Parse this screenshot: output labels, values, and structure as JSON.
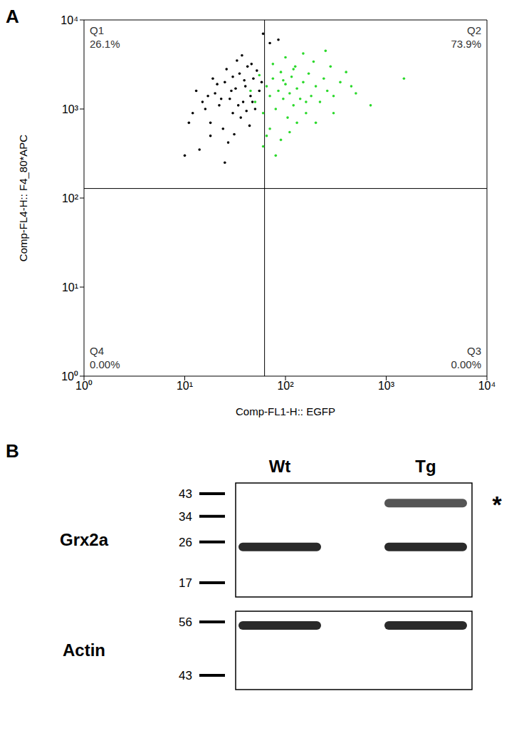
{
  "chart_data": {
    "type": "scatter",
    "panel": "A",
    "x_label": "Comp-FL1-H:: EGFP",
    "y_label": "Comp-FL4-H:: F4_80*APC",
    "log": true,
    "xlim": [
      1,
      10000
    ],
    "ylim": [
      1,
      10000
    ],
    "xticks": [
      {
        "value": 1,
        "label": "10⁰"
      },
      {
        "value": 10,
        "label": "10¹"
      },
      {
        "value": 100,
        "label": "10²"
      },
      {
        "value": 1000,
        "label": "10³"
      },
      {
        "value": 10000,
        "label": "10⁴"
      }
    ],
    "yticks": [
      {
        "value": 1,
        "label": "10⁰"
      },
      {
        "value": 10,
        "label": "10¹"
      },
      {
        "value": 100,
        "label": "10²"
      },
      {
        "value": 1000,
        "label": "10³"
      },
      {
        "value": 10000,
        "label": "10⁴"
      }
    ],
    "gates": {
      "x": 62,
      "y": 128
    },
    "quadrants": [
      {
        "name": "Q1",
        "value": 26.1,
        "label": "26.1%"
      },
      {
        "name": "Q2",
        "value": 73.9,
        "label": "73.9%"
      },
      {
        "name": "Q3",
        "value": 0,
        "label": "0.00%"
      },
      {
        "name": "Q4",
        "value": 0,
        "label": "0.00%"
      }
    ],
    "series": [
      {
        "color": "#000000",
        "x": [
          12,
          15,
          18,
          20,
          22,
          25,
          28,
          30,
          32,
          35,
          38,
          40,
          42,
          45,
          48,
          50,
          52,
          55,
          18,
          24,
          27,
          14,
          10,
          33,
          26,
          21,
          16,
          36,
          44,
          30,
          23,
          29,
          34,
          39,
          46,
          19,
          13,
          11,
          58,
          41,
          31,
          37,
          25,
          17,
          47,
          60,
          70,
          85
        ],
        "y": [
          900,
          1200,
          700,
          1500,
          1100,
          2000,
          1300,
          900,
          1700,
          2500,
          1200,
          1800,
          3000,
          1400,
          2200,
          1000,
          2700,
          1600,
          500,
          600,
          420,
          350,
          300,
          3500,
          2800,
          1900,
          1000,
          800,
          650,
          2300,
          1300,
          1600,
          1100,
          2100,
          3200,
          2200,
          1600,
          700,
          2000,
          950,
          520,
          4000,
          250,
          1400,
          1200,
          7000,
          5500,
          6000
        ]
      },
      {
        "color": "#2bd92b",
        "x": [
          50,
          60,
          65,
          70,
          75,
          80,
          85,
          90,
          95,
          100,
          105,
          110,
          115,
          120,
          125,
          130,
          140,
          150,
          160,
          170,
          180,
          190,
          200,
          220,
          240,
          260,
          280,
          300,
          350,
          400,
          450,
          70,
          90,
          60,
          110,
          130,
          55,
          75,
          100,
          150,
          250,
          300,
          500,
          80,
          65,
          120,
          200,
          160,
          45,
          95,
          700,
          1500
        ],
        "y": [
          1200,
          900,
          1800,
          1400,
          2200,
          1000,
          1600,
          2600,
          1300,
          1900,
          800,
          1500,
          2300,
          1100,
          3000,
          1700,
          1300,
          2000,
          900,
          2500,
          1400,
          3400,
          1800,
          1200,
          2200,
          1600,
          3000,
          1400,
          2000,
          2600,
          1800,
          600,
          450,
          380,
          550,
          700,
          2400,
          3200,
          3800,
          4200,
          4500,
          900,
          1500,
          300,
          500,
          2800,
          700,
          1200,
          1600,
          2100,
          1100,
          2200
        ]
      }
    ]
  },
  "blot": {
    "panel": "B",
    "lanes": [
      "Wt",
      "Tg"
    ],
    "panels": [
      {
        "label": "Grx2a",
        "markers": [
          43,
          34,
          26,
          17
        ],
        "bands": [
          {
            "lane": "Wt",
            "kDa": 24.7
          },
          {
            "lane": "Tg",
            "kDa": 24.7
          },
          {
            "lane": "Tg",
            "kDa": 39,
            "annotation": "*"
          }
        ]
      },
      {
        "label": "Actin",
        "markers": [
          56,
          43
        ],
        "bands": [
          {
            "lane": "Wt",
            "kDa": 55
          },
          {
            "lane": "Tg",
            "kDa": 55
          }
        ]
      }
    ]
  }
}
